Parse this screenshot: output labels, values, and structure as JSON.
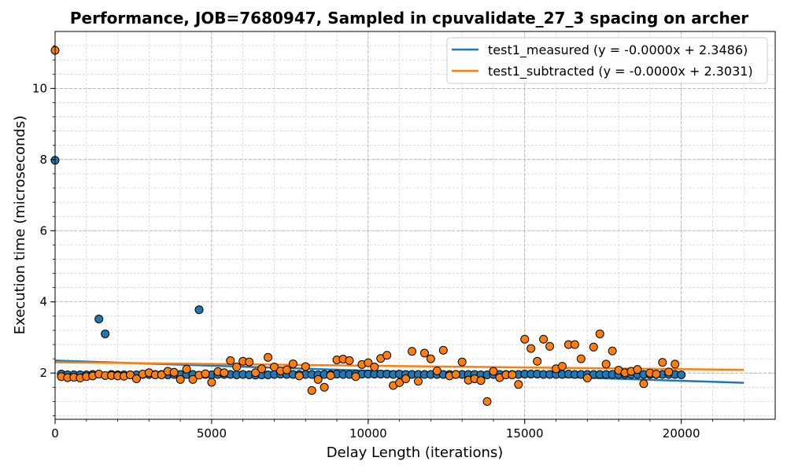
{
  "chart_data": {
    "type": "scatter",
    "title": "Performance, JOB=7680947, Sampled in cpuvalidate_27_3 spacing on archer",
    "xlabel": "Delay Length (iterations)",
    "ylabel": "Execution time (microseconds)",
    "xlim": [
      0,
      23000
    ],
    "ylim": [
      0.7,
      11.6
    ],
    "x_ticks": [
      0,
      5000,
      10000,
      15000,
      20000
    ],
    "y_ticks": [
      2,
      4,
      6,
      8,
      10
    ],
    "x_tick_labels": [
      "0",
      "5000",
      "10000",
      "15000",
      "20000"
    ],
    "y_tick_labels": [
      "2",
      "4",
      "6",
      "8",
      "10"
    ],
    "grid": true,
    "legend_position": "top-right",
    "series": [
      {
        "name": "test1_measured (y = -0.0000x + 2.3486)",
        "color": "#1f77b4",
        "fit": {
          "slope": -2.83e-05,
          "intercept": 2.3486,
          "x_range": [
            0,
            22000
          ]
        },
        "points": [
          [
            0,
            7.98
          ],
          [
            200,
            1.97
          ],
          [
            400,
            1.95
          ],
          [
            600,
            1.95
          ],
          [
            800,
            1.95
          ],
          [
            1000,
            1.95
          ],
          [
            1200,
            1.96
          ],
          [
            1400,
            3.52
          ],
          [
            1600,
            3.1
          ],
          [
            1800,
            1.96
          ],
          [
            2000,
            1.95
          ],
          [
            2200,
            1.95
          ],
          [
            2400,
            1.95
          ],
          [
            2600,
            1.95
          ],
          [
            2800,
            1.96
          ],
          [
            3000,
            1.96
          ],
          [
            3200,
            1.96
          ],
          [
            3400,
            1.96
          ],
          [
            3600,
            1.95
          ],
          [
            3800,
            1.96
          ],
          [
            4000,
            1.96
          ],
          [
            4200,
            1.96
          ],
          [
            4400,
            1.96
          ],
          [
            4600,
            3.78
          ],
          [
            4800,
            1.96
          ],
          [
            5000,
            1.95
          ],
          [
            5200,
            1.96
          ],
          [
            5400,
            1.96
          ],
          [
            5600,
            1.96
          ],
          [
            5800,
            1.95
          ],
          [
            6000,
            1.96
          ],
          [
            6200,
            1.95
          ],
          [
            6400,
            1.94
          ],
          [
            6600,
            1.95
          ],
          [
            6800,
            1.95
          ],
          [
            7000,
            1.96
          ],
          [
            7200,
            1.97
          ],
          [
            7400,
            1.96
          ],
          [
            7600,
            1.96
          ],
          [
            7800,
            1.96
          ],
          [
            8000,
            1.96
          ],
          [
            8200,
            1.96
          ],
          [
            8400,
            1.95
          ],
          [
            8600,
            1.96
          ],
          [
            8800,
            1.96
          ],
          [
            9000,
            1.97
          ],
          [
            9200,
            1.96
          ],
          [
            9400,
            1.96
          ],
          [
            9600,
            1.97
          ],
          [
            9800,
            1.97
          ],
          [
            10000,
            1.97
          ],
          [
            10200,
            1.97
          ],
          [
            10400,
            1.97
          ],
          [
            10600,
            1.97
          ],
          [
            10800,
            1.96
          ],
          [
            11000,
            1.97
          ],
          [
            11200,
            1.96
          ],
          [
            11400,
            1.96
          ],
          [
            11600,
            1.96
          ],
          [
            11800,
            1.96
          ],
          [
            12000,
            1.96
          ],
          [
            12200,
            1.96
          ],
          [
            12400,
            1.96
          ],
          [
            12600,
            1.96
          ],
          [
            12800,
            1.96
          ],
          [
            13000,
            1.96
          ],
          [
            13200,
            1.96
          ],
          [
            13400,
            1.96
          ],
          [
            13600,
            1.95
          ],
          [
            13800,
            1.95
          ],
          [
            14000,
            1.96
          ],
          [
            14200,
            1.96
          ],
          [
            14400,
            1.96
          ],
          [
            14600,
            1.96
          ],
          [
            14800,
            1.96
          ],
          [
            15000,
            1.97
          ],
          [
            15200,
            1.97
          ],
          [
            15400,
            1.97
          ],
          [
            15600,
            1.96
          ],
          [
            15800,
            1.96
          ],
          [
            16000,
            1.96
          ],
          [
            16200,
            1.96
          ],
          [
            16400,
            1.97
          ],
          [
            16600,
            1.96
          ],
          [
            16800,
            1.96
          ],
          [
            17000,
            1.96
          ],
          [
            17200,
            1.96
          ],
          [
            17400,
            1.96
          ],
          [
            17600,
            1.96
          ],
          [
            17800,
            1.96
          ],
          [
            18000,
            1.96
          ],
          [
            18200,
            1.96
          ],
          [
            18400,
            1.96
          ],
          [
            18600,
            1.96
          ],
          [
            18800,
            1.96
          ],
          [
            19000,
            1.96
          ],
          [
            19200,
            1.96
          ],
          [
            19400,
            1.96
          ],
          [
            19600,
            1.96
          ],
          [
            19800,
            1.96
          ],
          [
            20000,
            1.95
          ]
        ]
      },
      {
        "name": "test1_subtracted (y = -0.0000x + 2.3031)",
        "color": "#ff7f0e",
        "fit": {
          "slope": -9.7e-06,
          "intercept": 2.3031,
          "x_range": [
            0,
            22000
          ]
        },
        "points": [
          [
            0,
            11.07
          ],
          [
            200,
            1.9
          ],
          [
            400,
            1.87
          ],
          [
            600,
            1.88
          ],
          [
            800,
            1.86
          ],
          [
            1000,
            1.9
          ],
          [
            1200,
            1.92
          ],
          [
            1400,
            1.97
          ],
          [
            1600,
            1.93
          ],
          [
            1800,
            1.93
          ],
          [
            2000,
            1.92
          ],
          [
            2200,
            1.91
          ],
          [
            2400,
            1.95
          ],
          [
            2600,
            1.84
          ],
          [
            2800,
            1.97
          ],
          [
            3000,
            2.01
          ],
          [
            3200,
            1.95
          ],
          [
            3400,
            1.95
          ],
          [
            3600,
            2.05
          ],
          [
            3800,
            2.02
          ],
          [
            4000,
            1.82
          ],
          [
            4200,
            2.11
          ],
          [
            4400,
            1.82
          ],
          [
            4600,
            1.94
          ],
          [
            4800,
            1.98
          ],
          [
            5000,
            1.74
          ],
          [
            5200,
            2.04
          ],
          [
            5400,
            2.01
          ],
          [
            5600,
            2.35
          ],
          [
            5800,
            2.17
          ],
          [
            6000,
            2.33
          ],
          [
            6200,
            2.31
          ],
          [
            6400,
            2.01
          ],
          [
            6600,
            2.12
          ],
          [
            6800,
            2.44
          ],
          [
            7000,
            2.17
          ],
          [
            7200,
            2.06
          ],
          [
            7400,
            2.09
          ],
          [
            7600,
            2.26
          ],
          [
            7800,
            1.92
          ],
          [
            8000,
            2.18
          ],
          [
            8200,
            1.51
          ],
          [
            8400,
            1.82
          ],
          [
            8600,
            1.6
          ],
          [
            8800,
            1.93
          ],
          [
            9000,
            2.37
          ],
          [
            9200,
            2.39
          ],
          [
            9400,
            2.35
          ],
          [
            9600,
            1.9
          ],
          [
            9800,
            2.24
          ],
          [
            10000,
            2.29
          ],
          [
            10200,
            2.17
          ],
          [
            10400,
            2.41
          ],
          [
            10600,
            2.5
          ],
          [
            10800,
            1.65
          ],
          [
            11000,
            1.73
          ],
          [
            11200,
            1.84
          ],
          [
            11400,
            2.61
          ],
          [
            11600,
            1.77
          ],
          [
            11800,
            2.56
          ],
          [
            12000,
            2.4
          ],
          [
            12200,
            2.06
          ],
          [
            12400,
            2.64
          ],
          [
            12600,
            1.92
          ],
          [
            12800,
            1.96
          ],
          [
            13000,
            2.31
          ],
          [
            13200,
            1.8
          ],
          [
            13400,
            1.84
          ],
          [
            13600,
            1.79
          ],
          [
            13800,
            1.2
          ],
          [
            14000,
            2.05
          ],
          [
            14200,
            1.87
          ],
          [
            14400,
            1.95
          ],
          [
            14600,
            1.95
          ],
          [
            14800,
            1.68
          ],
          [
            15000,
            2.95
          ],
          [
            15200,
            2.69
          ],
          [
            15400,
            2.33
          ],
          [
            15600,
            2.95
          ],
          [
            15800,
            2.75
          ],
          [
            16000,
            2.12
          ],
          [
            16200,
            2.19
          ],
          [
            16400,
            2.8
          ],
          [
            16600,
            2.8
          ],
          [
            16800,
            2.4
          ],
          [
            17000,
            1.86
          ],
          [
            17200,
            2.73
          ],
          [
            17400,
            3.1
          ],
          [
            17600,
            2.25
          ],
          [
            17800,
            2.62
          ],
          [
            18000,
            2.08
          ],
          [
            18200,
            2.01
          ],
          [
            18400,
            2.05
          ],
          [
            18600,
            2.1
          ],
          [
            18800,
            1.7
          ],
          [
            19000,
            2.0
          ],
          [
            19200,
            1.97
          ],
          [
            19400,
            2.3
          ],
          [
            19600,
            2.03
          ],
          [
            19800,
            2.25
          ]
        ]
      }
    ]
  }
}
